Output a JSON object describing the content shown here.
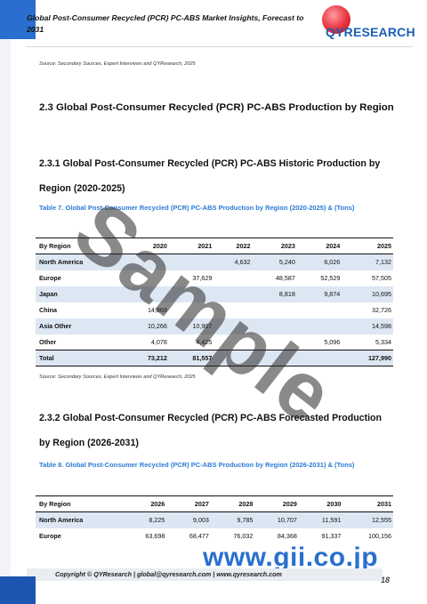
{
  "header": {
    "title": "Global Post-Consumer Recycled (PCR) PC-ABS Market Insights, Forecast to 2031",
    "logo_text": "QYRESEARCH"
  },
  "sources": {
    "top": "Source: Secondary Sources, Expert Interviews and QYResearch, 2025",
    "middle": "Source: Secondary Sources, Expert Interviews and QYResearch, 2025"
  },
  "section_2_3": "2.3  Global Post-Consumer Recycled (PCR) PC-ABS Production by Region",
  "section_2_3_1": "2.3.1  Global Post-Consumer Recycled (PCR) PC-ABS Historic Production by Region (2020-2025)",
  "table7": {
    "caption": "Table 7.   Global Post-Consumer Recycled (PCR) PC-ABS Production by Region (2020-2025) & (Tons)",
    "columns": [
      "By Region",
      "2020",
      "2021",
      "2022",
      "2023",
      "2024",
      "2025"
    ],
    "rows": [
      [
        "North America",
        "",
        "",
        "4,632",
        "5,240",
        "6,026",
        "7,132"
      ],
      [
        "Europe",
        "",
        "37,629",
        "",
        "48,587",
        "52,529",
        "57,505"
      ],
      [
        "Japan",
        "",
        "",
        "",
        "8,818",
        "9,874",
        "10,695"
      ],
      [
        "China",
        "14,869",
        "",
        "",
        "",
        "",
        "32,726"
      ],
      [
        "Asia Other",
        "10,266",
        "10,907",
        "",
        "",
        "",
        "14,598"
      ],
      [
        "Other",
        "4,078",
        "4,425",
        "",
        "",
        "5,096",
        "5,334"
      ],
      [
        "Total",
        "73,212",
        "81,557",
        "",
        "",
        "",
        "127,990"
      ]
    ]
  },
  "section_2_3_2": "2.3.2  Global Post-Consumer Recycled (PCR) PC-ABS Forecasted Production by Region (2026-2031)",
  "table8": {
    "caption": "Table 8.   Global Post-Consumer Recycled (PCR) PC-ABS Production by Region (2026-2031) & (Tons)",
    "columns": [
      "By Region",
      "2026",
      "2027",
      "2028",
      "2029",
      "2030",
      "2031"
    ],
    "rows": [
      [
        "North America",
        "8,225",
        "9,003",
        "9,785",
        "10,707",
        "11,591",
        "12,555"
      ],
      [
        "Europe",
        "63,698",
        "68,477",
        "76,032",
        "84,368",
        "91,337",
        "100,156"
      ]
    ]
  },
  "watermark": "Sample",
  "footer": {
    "text": "Copyright © QYResearch | global@qyresearch.com | www.qyresearch.com",
    "page": "18",
    "site": "www.gii.co.jp"
  },
  "colors": {
    "accent_blue": "#2a7bd6",
    "row_shade": "#dde7f3",
    "logo_red": "#e8323d"
  }
}
